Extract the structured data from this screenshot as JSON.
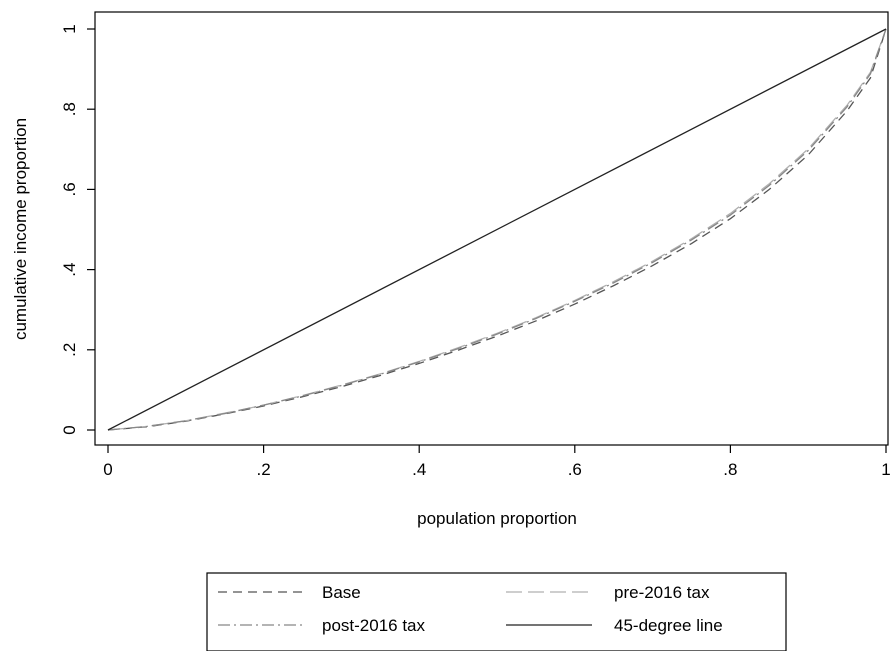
{
  "chart_data": {
    "type": "line",
    "xlabel": "population proportion",
    "ylabel": "cumulative income proportion",
    "xlim": [
      0,
      1
    ],
    "ylim": [
      0,
      1
    ],
    "x_ticks": [
      {
        "value": 0,
        "label": "0"
      },
      {
        "value": 0.2,
        "label": ".2"
      },
      {
        "value": 0.4,
        "label": ".4"
      },
      {
        "value": 0.6,
        "label": ".6"
      },
      {
        "value": 0.8,
        "label": ".8"
      },
      {
        "value": 1,
        "label": "1"
      }
    ],
    "y_ticks": [
      {
        "value": 0,
        "label": "0"
      },
      {
        "value": 0.2,
        "label": ".2"
      },
      {
        "value": 0.4,
        "label": ".4"
      },
      {
        "value": 0.6,
        "label": ".6"
      },
      {
        "value": 0.8,
        "label": ".8"
      },
      {
        "value": 1,
        "label": "1"
      }
    ],
    "grid": false,
    "legend_position": "bottom",
    "series": [
      {
        "name": "Base",
        "style": "dashed",
        "color": "#555555",
        "x": [
          0,
          0.05,
          0.1,
          0.15,
          0.2,
          0.25,
          0.3,
          0.35,
          0.4,
          0.45,
          0.5,
          0.55,
          0.6,
          0.65,
          0.7,
          0.75,
          0.8,
          0.85,
          0.9,
          0.95,
          0.98,
          1
        ],
        "y": [
          0,
          0.008,
          0.022,
          0.04,
          0.06,
          0.083,
          0.108,
          0.136,
          0.166,
          0.199,
          0.234,
          0.272,
          0.314,
          0.36,
          0.41,
          0.465,
          0.527,
          0.6,
          0.686,
          0.796,
          0.878,
          1
        ]
      },
      {
        "name": "pre-2016 tax",
        "style": "long-dashed",
        "color": "#b0b0b0",
        "x": [
          0,
          0.05,
          0.1,
          0.15,
          0.2,
          0.25,
          0.3,
          0.35,
          0.4,
          0.45,
          0.5,
          0.55,
          0.6,
          0.65,
          0.7,
          0.75,
          0.8,
          0.85,
          0.9,
          0.95,
          0.98,
          1
        ],
        "y": [
          0,
          0.009,
          0.023,
          0.042,
          0.062,
          0.086,
          0.112,
          0.14,
          0.171,
          0.205,
          0.241,
          0.28,
          0.323,
          0.37,
          0.421,
          0.477,
          0.54,
          0.614,
          0.701,
          0.81,
          0.892,
          1
        ]
      },
      {
        "name": "post-2016 tax",
        "style": "dash-dot",
        "color": "#888888",
        "x": [
          0,
          0.05,
          0.1,
          0.15,
          0.2,
          0.25,
          0.3,
          0.35,
          0.4,
          0.45,
          0.5,
          0.55,
          0.6,
          0.65,
          0.7,
          0.75,
          0.8,
          0.85,
          0.9,
          0.95,
          0.98,
          1
        ],
        "y": [
          0,
          0.009,
          0.023,
          0.041,
          0.062,
          0.085,
          0.111,
          0.139,
          0.17,
          0.203,
          0.239,
          0.278,
          0.321,
          0.367,
          0.418,
          0.474,
          0.536,
          0.61,
          0.697,
          0.806,
          0.888,
          1
        ]
      },
      {
        "name": "45-degree line",
        "style": "solid",
        "color": "#222222",
        "x": [
          0,
          1
        ],
        "y": [
          0,
          1
        ]
      }
    ]
  }
}
